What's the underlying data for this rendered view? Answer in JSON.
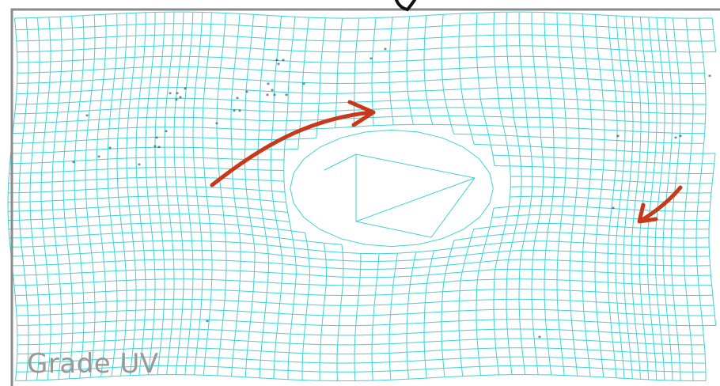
{
  "caption": "Grade UV",
  "colors": {
    "mesh": "#3fd3cf",
    "arrow": "#c8381a",
    "frame": "#8a8a8a",
    "pointer": "#111111",
    "marker": "#333333",
    "caption": "#999999"
  },
  "icons": {
    "top_pointer": "down-pointer-icon",
    "arrows": [
      "flow-arrow-icon",
      "flow-arrow-icon"
    ],
    "markers": "asterisk-marker-icon"
  }
}
